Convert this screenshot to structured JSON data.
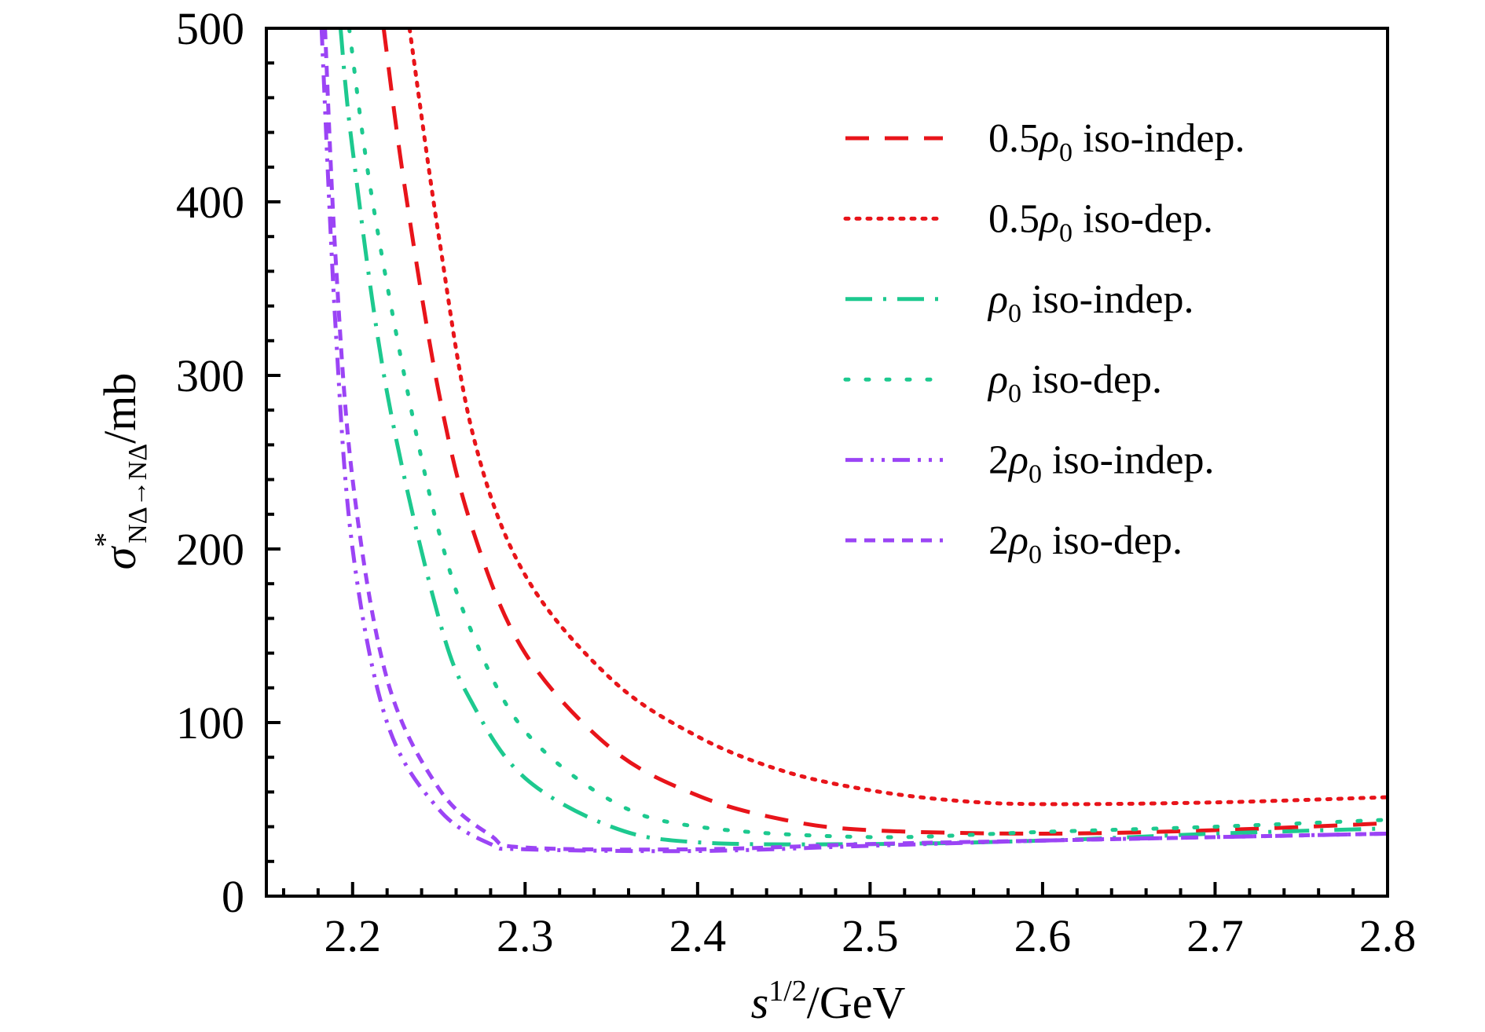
{
  "chart_data": {
    "type": "line",
    "xlabel": {
      "base": "s",
      "sup": "1/2",
      "rest": "/GeV"
    },
    "ylabel": {
      "base": "σ",
      "sup": "*",
      "sub": "NΔ→NΔ",
      "rest": "/mb"
    },
    "xlim": [
      2.15,
      2.8
    ],
    "ylim": [
      0,
      500
    ],
    "xticks": [
      "2.2",
      "2.3",
      "2.4",
      "2.5",
      "2.6",
      "2.7",
      "2.8"
    ],
    "yticks": [
      "0",
      "100",
      "200",
      "300",
      "400",
      "500"
    ],
    "grid": false,
    "legend_position": "top-right",
    "series": [
      {
        "name": "0.5ρ0 iso-indep.",
        "label": {
          "pre": "0.5",
          "sym": "ρ",
          "sub": "0",
          "post": " iso-indep."
        },
        "color": "#e8141a",
        "style": "dashed",
        "x": [
          2.218,
          2.23,
          2.25,
          2.27,
          2.3,
          2.35,
          2.4,
          2.45,
          2.5,
          2.6,
          2.7,
          2.8
        ],
        "y": [
          500,
          410,
          290,
          210,
          140,
          85,
          58,
          44,
          38,
          36,
          38,
          42
        ]
      },
      {
        "name": "0.5ρ0 iso-dep.",
        "label": {
          "pre": "0.5",
          "sym": "ρ",
          "sub": "0",
          "post": " iso-dep."
        },
        "color": "#e8141a",
        "style": "dotted",
        "x": [
          2.233,
          2.25,
          2.27,
          2.3,
          2.35,
          2.4,
          2.45,
          2.5,
          2.55,
          2.6,
          2.7,
          2.8
        ],
        "y": [
          500,
          380,
          265,
          185,
          125,
          92,
          72,
          61,
          55,
          53,
          54,
          57
        ]
      },
      {
        "name": "ρ0 iso-indep.",
        "label": {
          "pre": "",
          "sym": "ρ",
          "sub": "0",
          "post": " iso-indep."
        },
        "color": "#1dc98f",
        "style": "dashdot",
        "x": [
          2.193,
          2.2,
          2.22,
          2.25,
          2.27,
          2.3,
          2.35,
          2.4,
          2.5,
          2.6,
          2.7,
          2.8
        ],
        "y": [
          500,
          430,
          290,
          160,
          110,
          68,
          40,
          31,
          30,
          32,
          36,
          39
        ]
      },
      {
        "name": "ρ0 iso-dep.",
        "label": {
          "pre": "",
          "sym": "ρ",
          "sub": "0",
          "post": " iso-dep."
        },
        "color": "#1dc98f",
        "style": "dotted-sparse",
        "x": [
          2.198,
          2.21,
          2.23,
          2.25,
          2.27,
          2.3,
          2.35,
          2.4,
          2.5,
          2.6,
          2.7,
          2.8
        ],
        "y": [
          500,
          410,
          300,
          210,
          150,
          95,
          55,
          40,
          34,
          37,
          40,
          44
        ]
      },
      {
        "name": "2ρ0 iso-indep.",
        "label": {
          "pre": "2",
          "sym": "ρ",
          "sub": "0",
          "post": " iso-indep."
        },
        "color": "#9b44f5",
        "style": "dashdotdot",
        "x": [
          2.182,
          2.19,
          2.2,
          2.22,
          2.25,
          2.28,
          2.3,
          2.4,
          2.5,
          2.6,
          2.7,
          2.8
        ],
        "y": [
          500,
          330,
          200,
          100,
          50,
          30,
          27,
          26,
          29,
          32,
          34,
          36
        ]
      },
      {
        "name": "2ρ0 iso-dep.",
        "label": {
          "pre": "2",
          "sym": "ρ",
          "sub": "0",
          "post": " iso-dep."
        },
        "color": "#9b44f5",
        "style": "shortdash",
        "x": [
          2.184,
          2.19,
          2.2,
          2.22,
          2.25,
          2.28,
          2.3,
          2.4,
          2.5,
          2.6,
          2.7,
          2.8
        ],
        "y": [
          500,
          370,
          240,
          125,
          62,
          35,
          28,
          27,
          30,
          32,
          34,
          36
        ]
      }
    ]
  }
}
